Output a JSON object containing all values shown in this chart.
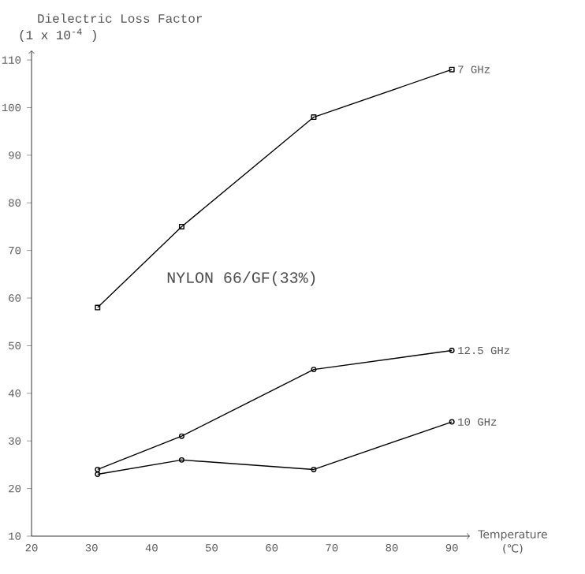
{
  "chart_data": {
    "type": "line",
    "ylabel": "Dielectric Loss Factor",
    "xlabel": "Temperature (℃)",
    "annotations": [
      "(1 x 10$^{-4}$ )",
      "NYLON 66/GF(33%)"
    ],
    "x": [
      31,
      45,
      67,
      90
    ],
    "series": [
      {
        "name": "7 GHz",
        "color": "#000000",
        "marker": "square",
        "values": [
          58,
          75,
          98,
          108
        ]
      },
      {
        "name": "12.5 GHz",
        "color": "#000000",
        "marker": "circle",
        "values": [
          24,
          31,
          45,
          49
        ]
      },
      {
        "name": "10 GHz",
        "color": "#000000",
        "marker": "circle",
        "values": [
          23,
          26,
          24,
          34
        ]
      }
    ],
    "xlim": [
      20,
      93
    ],
    "ylim": [
      10,
      112
    ],
    "xticks": [
      20,
      30,
      40,
      50,
      60,
      70,
      80,
      90
    ],
    "yticks": [
      10,
      20,
      30,
      40,
      50,
      60,
      70,
      80,
      90,
      100,
      110
    ],
    "grid": false,
    "line_style": "solid"
  }
}
